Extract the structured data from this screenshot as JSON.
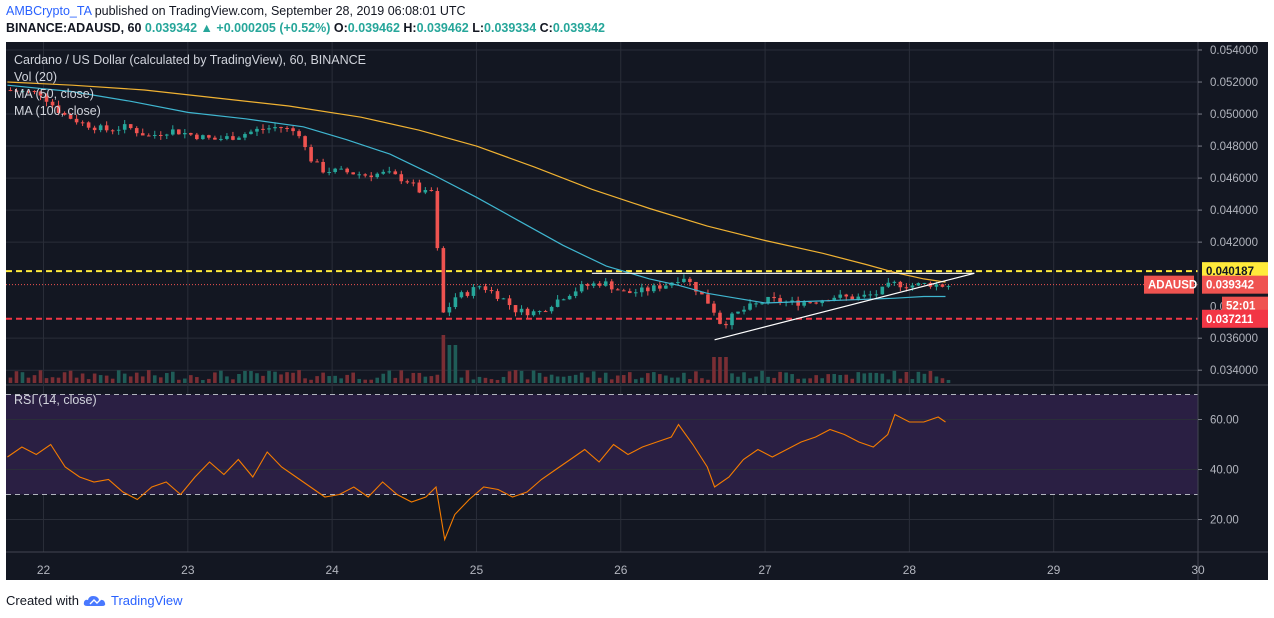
{
  "header": {
    "author": "AMBCrypto_TA",
    "published_text": "published on TradingView.com, September 28, 2019 06:08:01 UTC",
    "symbol": "BINANCE:ADAUSD, 60",
    "price": "0.039342",
    "change": "+0.000205 (+0.52%)",
    "o_label": "O:",
    "o_value": "0.039462",
    "h_label": "H:",
    "h_value": "0.039462",
    "l_label": "L:",
    "l_value": "0.039334",
    "c_label": "C:",
    "c_value": "0.039342"
  },
  "legend": {
    "title": "Cardano / US Dollar (calculated by TradingView), 60, BINANCE",
    "vol": "Vol (20)",
    "ma50": "MA (50, close)",
    "ma100": "MA (100, close)",
    "rsi": "RSI (14, close)"
  },
  "price_tags": {
    "resistance": "0.040187",
    "symbol_tag": "ADAUSD",
    "last": "0.039342",
    "countdown": "52:01",
    "support": "0.037211",
    "partial": "0.0"
  },
  "footer": {
    "created_with": "Created with",
    "brand": "TradingView"
  },
  "colors": {
    "background": "#131722",
    "rsi_band": "#2a1f43",
    "up": "#26a69a",
    "down": "#ef5350",
    "ma50": "#3fb6d0",
    "ma100": "#f0b232",
    "rsi_line": "#f57c00",
    "resistance_line": "#ffeb3b",
    "support_line": "#f23645"
  },
  "chart_data": {
    "type": "candlestick",
    "title": "Cardano / US Dollar (calculated by TradingView), 60, BINANCE",
    "price_ticks": [
      "0.054000",
      "0.052000",
      "0.050000",
      "0.048000",
      "0.046000",
      "0.044000",
      "0.042000",
      "0.036000",
      "0.034000"
    ],
    "price_range": [
      0.0332,
      0.0545
    ],
    "rsi_ticks": [
      "60.00",
      "40.00",
      "20.00"
    ],
    "rsi_range": [
      7,
      73
    ],
    "rsi_bands": [
      70,
      30
    ],
    "x_labels": [
      "22",
      "23",
      "24",
      "25",
      "26",
      "27",
      "28",
      "29",
      "30"
    ],
    "x_label_values": [
      22,
      23,
      24,
      25,
      26,
      27,
      28,
      29,
      30
    ],
    "x_range": [
      21.74,
      30.0
    ],
    "horizontal_levels": {
      "resistance": 0.040187,
      "support": 0.037211,
      "last": 0.039342
    },
    "price_path": [
      [
        21.75,
        0.0515
      ],
      [
        22.0,
        0.0513
      ],
      [
        22.15,
        0.05
      ],
      [
        22.3,
        0.0494
      ],
      [
        22.45,
        0.049
      ],
      [
        22.6,
        0.0492
      ],
      [
        22.75,
        0.0486
      ],
      [
        22.9,
        0.049
      ],
      [
        23.05,
        0.0487
      ],
      [
        23.2,
        0.0484
      ],
      [
        23.35,
        0.0486
      ],
      [
        23.5,
        0.049
      ],
      [
        23.65,
        0.0492
      ],
      [
        23.8,
        0.0488
      ],
      [
        23.85,
        0.0474
      ],
      [
        23.95,
        0.0465
      ],
      [
        24.1,
        0.0464
      ],
      [
        24.25,
        0.0462
      ],
      [
        24.4,
        0.0463
      ],
      [
        24.55,
        0.0458
      ],
      [
        24.65,
        0.045
      ],
      [
        24.72,
        0.0452
      ],
      [
        24.77,
        0.039
      ],
      [
        24.8,
        0.037
      ],
      [
        24.85,
        0.0385
      ],
      [
        24.95,
        0.0388
      ],
      [
        25.05,
        0.0393
      ],
      [
        25.2,
        0.0385
      ],
      [
        25.3,
        0.0377
      ],
      [
        25.45,
        0.0376
      ],
      [
        25.6,
        0.0385
      ],
      [
        25.75,
        0.0392
      ],
      [
        25.9,
        0.0395
      ],
      [
        26.05,
        0.0388
      ],
      [
        26.2,
        0.039
      ],
      [
        26.35,
        0.0394
      ],
      [
        26.45,
        0.0399
      ],
      [
        26.55,
        0.039
      ],
      [
        26.65,
        0.038
      ],
      [
        26.72,
        0.0368
      ],
      [
        26.8,
        0.0374
      ],
      [
        26.9,
        0.0379
      ],
      [
        27.05,
        0.0384
      ],
      [
        27.2,
        0.0382
      ],
      [
        27.35,
        0.0383
      ],
      [
        27.5,
        0.0386
      ],
      [
        27.65,
        0.0385
      ],
      [
        27.8,
        0.0388
      ],
      [
        27.9,
        0.0394
      ],
      [
        28.05,
        0.0393
      ],
      [
        28.15,
        0.0394
      ],
      [
        28.25,
        0.0393
      ]
    ],
    "ma50_path": [
      [
        21.75,
        0.0518
      ],
      [
        22.2,
        0.0514
      ],
      [
        22.6,
        0.0508
      ],
      [
        23.0,
        0.0501
      ],
      [
        23.4,
        0.0497
      ],
      [
        23.8,
        0.0492
      ],
      [
        24.1,
        0.0484
      ],
      [
        24.4,
        0.0475
      ],
      [
        24.7,
        0.0462
      ],
      [
        25.0,
        0.0448
      ],
      [
        25.3,
        0.0433
      ],
      [
        25.6,
        0.0418
      ],
      [
        25.9,
        0.0405
      ],
      [
        26.2,
        0.0397
      ],
      [
        26.4,
        0.0393
      ],
      [
        26.6,
        0.0388
      ],
      [
        26.8,
        0.0385
      ],
      [
        27.0,
        0.0382
      ],
      [
        27.3,
        0.0383
      ],
      [
        27.6,
        0.0384
      ],
      [
        27.9,
        0.0385
      ],
      [
        28.1,
        0.0386
      ],
      [
        28.25,
        0.0386
      ]
    ],
    "ma100_path": [
      [
        21.75,
        0.052
      ],
      [
        22.2,
        0.0518
      ],
      [
        22.7,
        0.0515
      ],
      [
        23.2,
        0.051
      ],
      [
        23.7,
        0.0505
      ],
      [
        24.2,
        0.0498
      ],
      [
        24.6,
        0.049
      ],
      [
        25.0,
        0.048
      ],
      [
        25.4,
        0.0467
      ],
      [
        25.8,
        0.0453
      ],
      [
        26.2,
        0.0441
      ],
      [
        26.6,
        0.043
      ],
      [
        27.0,
        0.0421
      ],
      [
        27.4,
        0.0413
      ],
      [
        27.7,
        0.0406
      ],
      [
        27.9,
        0.0401
      ],
      [
        28.1,
        0.0397
      ],
      [
        28.25,
        0.0395
      ]
    ],
    "trendlines": [
      {
        "name": "resistance-trendline",
        "points": [
          [
            25.8,
            0.04005
          ],
          [
            28.45,
            0.04005
          ]
        ]
      },
      {
        "name": "support-trendline",
        "points": [
          [
            26.65,
            0.0359
          ],
          [
            28.45,
            0.04005
          ]
        ]
      }
    ],
    "rsi_path": [
      [
        21.75,
        45
      ],
      [
        21.85,
        49
      ],
      [
        21.95,
        46
      ],
      [
        22.05,
        50
      ],
      [
        22.15,
        41
      ],
      [
        22.25,
        37
      ],
      [
        22.35,
        35
      ],
      [
        22.45,
        36
      ],
      [
        22.55,
        31
      ],
      [
        22.65,
        28
      ],
      [
        22.75,
        33
      ],
      [
        22.85,
        35
      ],
      [
        22.95,
        30
      ],
      [
        23.05,
        37
      ],
      [
        23.15,
        43
      ],
      [
        23.25,
        38
      ],
      [
        23.35,
        44
      ],
      [
        23.45,
        37
      ],
      [
        23.55,
        47
      ],
      [
        23.65,
        41
      ],
      [
        23.75,
        37
      ],
      [
        23.85,
        33
      ],
      [
        23.95,
        29
      ],
      [
        24.05,
        30
      ],
      [
        24.15,
        33
      ],
      [
        24.25,
        29
      ],
      [
        24.35,
        35
      ],
      [
        24.45,
        30
      ],
      [
        24.55,
        27
      ],
      [
        24.65,
        29
      ],
      [
        24.72,
        33
      ],
      [
        24.78,
        12
      ],
      [
        24.85,
        22
      ],
      [
        24.95,
        28
      ],
      [
        25.05,
        33
      ],
      [
        25.15,
        32
      ],
      [
        25.25,
        29
      ],
      [
        25.35,
        31
      ],
      [
        25.45,
        36
      ],
      [
        25.55,
        40
      ],
      [
        25.65,
        44
      ],
      [
        25.75,
        48
      ],
      [
        25.85,
        43
      ],
      [
        25.95,
        50
      ],
      [
        26.05,
        46
      ],
      [
        26.15,
        49
      ],
      [
        26.25,
        51
      ],
      [
        26.35,
        53
      ],
      [
        26.4,
        58
      ],
      [
        26.5,
        50
      ],
      [
        26.6,
        41
      ],
      [
        26.65,
        33
      ],
      [
        26.75,
        37
      ],
      [
        26.85,
        44
      ],
      [
        26.95,
        48
      ],
      [
        27.05,
        45
      ],
      [
        27.15,
        48
      ],
      [
        27.25,
        51
      ],
      [
        27.35,
        53
      ],
      [
        27.45,
        56
      ],
      [
        27.55,
        54
      ],
      [
        27.65,
        51
      ],
      [
        27.75,
        49
      ],
      [
        27.85,
        54
      ],
      [
        27.9,
        62
      ],
      [
        28.0,
        59
      ],
      [
        28.1,
        59
      ],
      [
        28.2,
        61
      ],
      [
        28.25,
        59
      ]
    ]
  }
}
